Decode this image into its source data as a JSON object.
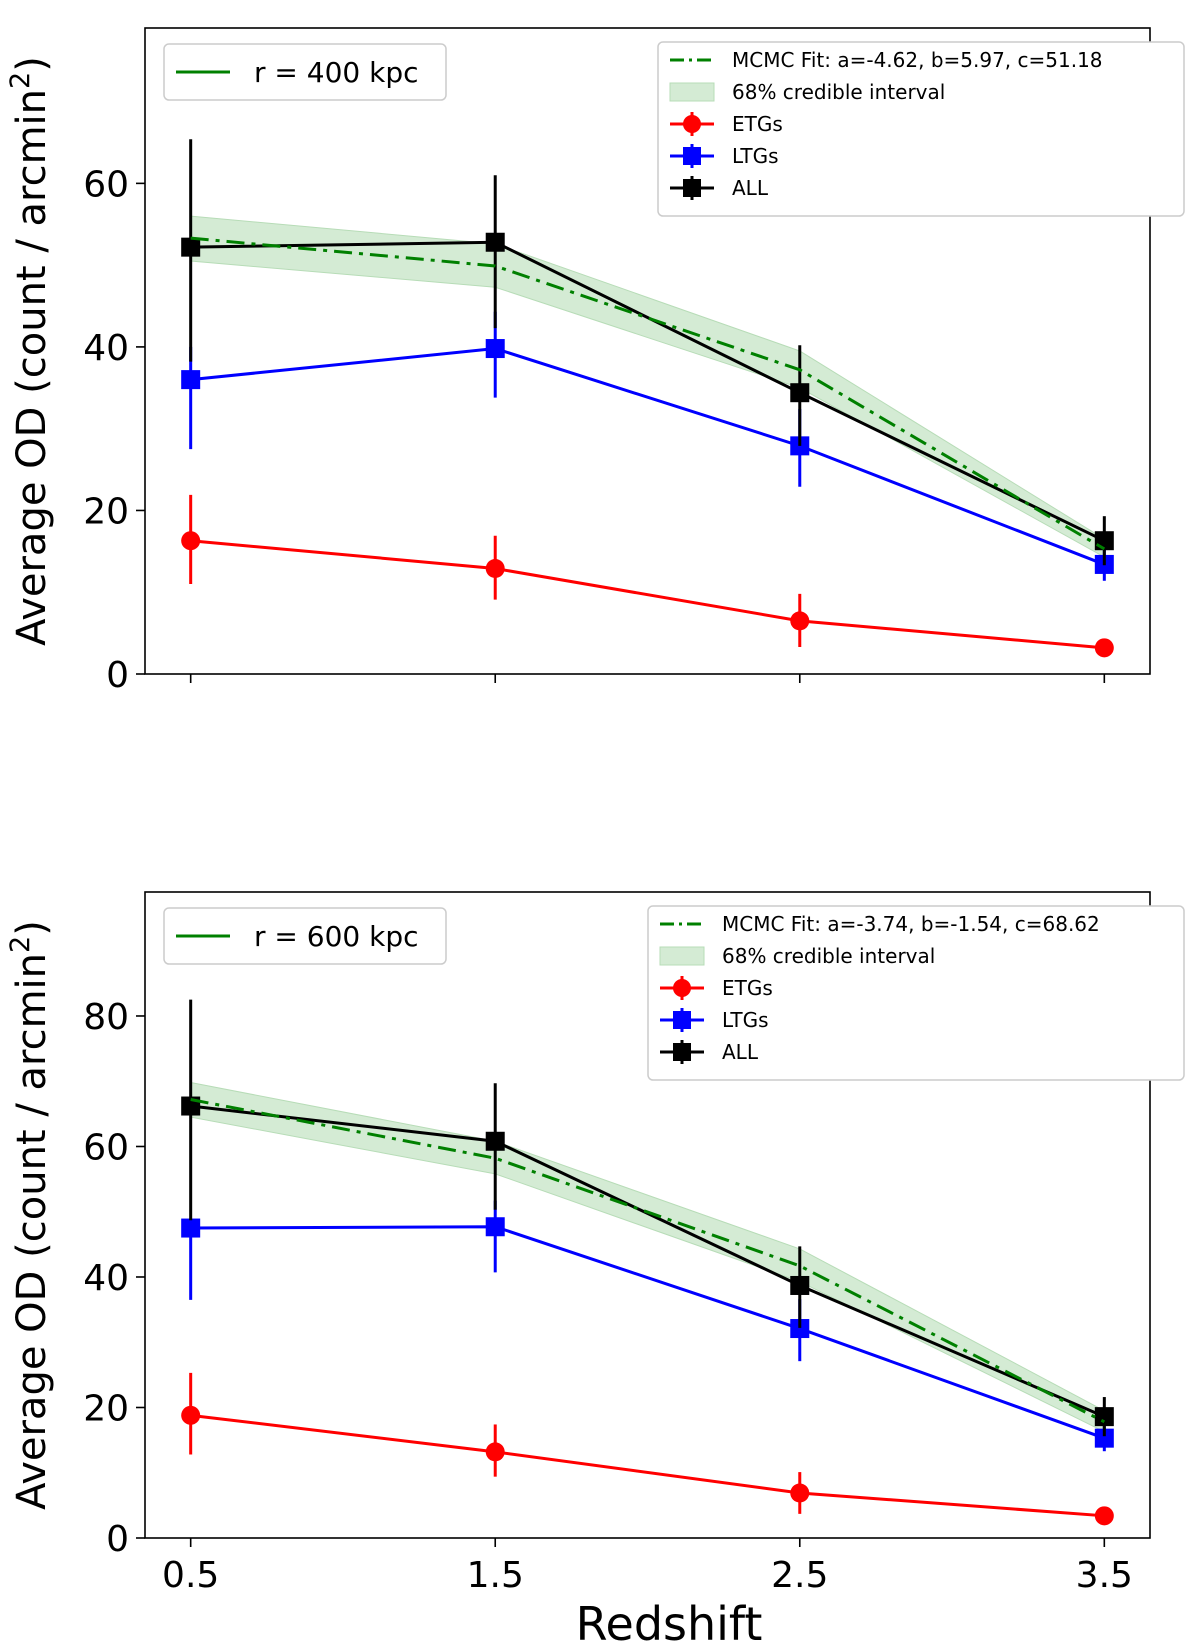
{
  "figure": {
    "xlabel": "Redshift"
  },
  "chart_data": [
    {
      "type": "line",
      "xlabel": "Redshift",
      "ylabel_main": "Average OD (count / arcmin",
      "ylabel_sup": "2",
      "ylabel_close": ")",
      "xlim": [
        0.35,
        3.65
      ],
      "ylim": [
        0,
        79
      ],
      "yticks": [
        0,
        20,
        40,
        60
      ],
      "x": [
        0.5,
        1.5,
        2.5,
        3.5
      ],
      "xtick_labels": [
        "0.5",
        "1.5",
        "2.5",
        "3.5"
      ],
      "show_xtick_labels": false,
      "radius_legend": {
        "label": "r = 400 kpc",
        "color": "#008000"
      },
      "fit": {
        "label": "MCMC Fit: a=-4.62, b=5.97, c=51.18",
        "color": "#008000",
        "values": [
          53.3,
          49.9,
          37.2,
          15.3
        ],
        "band_label": "68% credible interval",
        "band_color": "#d4ebd4",
        "band_lower": [
          50.5,
          47.3,
          35.0,
          14.3
        ],
        "band_upper": [
          56.0,
          52.6,
          39.5,
          16.5
        ]
      },
      "series": [
        {
          "name": "ETGs",
          "color": "#ff0000",
          "marker": "circle",
          "values": [
            16.3,
            12.9,
            6.5,
            3.2
          ],
          "err_low": [
            5.3,
            3.8,
            3.2,
            0.6
          ],
          "err_high": [
            5.6,
            4.0,
            3.3,
            0.6
          ]
        },
        {
          "name": "LTGs",
          "color": "#0000ff",
          "marker": "square",
          "values": [
            36.0,
            39.8,
            27.9,
            13.4
          ],
          "err_low": [
            8.5,
            6.0,
            5.0,
            2.0
          ],
          "err_high": [
            4.0,
            4.5,
            4.5,
            2.0
          ]
        },
        {
          "name": "ALL",
          "color": "#000000",
          "marker": "square",
          "values": [
            52.2,
            52.8,
            34.4,
            16.3
          ],
          "err_low": [
            14.0,
            10.5,
            6.5,
            3.0
          ],
          "err_high": [
            13.2,
            8.2,
            5.8,
            3.0
          ]
        }
      ]
    },
    {
      "type": "line",
      "xlabel": "Redshift",
      "ylabel_main": "Average OD (count / arcmin",
      "ylabel_sup": "2",
      "ylabel_close": ")",
      "xlim": [
        0.35,
        3.65
      ],
      "ylim": [
        0,
        99
      ],
      "yticks": [
        0,
        20,
        40,
        60,
        80
      ],
      "x": [
        0.5,
        1.5,
        2.5,
        3.5
      ],
      "xtick_labels": [
        "0.5",
        "1.5",
        "2.5",
        "3.5"
      ],
      "show_xtick_labels": true,
      "radius_legend": {
        "label": "r = 600 kpc",
        "color": "#008000"
      },
      "fit": {
        "label": "MCMC Fit: a=-3.74, b=-1.54, c=68.62",
        "color": "#008000",
        "values": [
          67.2,
          58.2,
          41.7,
          17.8
        ],
        "band_lower": [
          64.5,
          55.8,
          39.3,
          16.3
        ],
        "band_upper": [
          69.8,
          60.8,
          44.3,
          19.5
        ],
        "band_label": "68% credible interval",
        "band_color": "#d4ebd4"
      },
      "series": [
        {
          "name": "ETGs",
          "color": "#ff0000",
          "marker": "circle",
          "values": [
            18.8,
            13.2,
            6.9,
            3.4
          ],
          "err_low": [
            6.0,
            3.8,
            3.2,
            0.6
          ],
          "err_high": [
            6.5,
            4.2,
            3.2,
            0.6
          ]
        },
        {
          "name": "LTGs",
          "color": "#0000ff",
          "marker": "square",
          "values": [
            47.5,
            47.7,
            32.1,
            15.3
          ],
          "err_low": [
            11.0,
            7.0,
            5.0,
            2.0
          ],
          "err_high": [
            0.0,
            4.0,
            4.5,
            2.0
          ]
        },
        {
          "name": "ALL",
          "color": "#000000",
          "marker": "square",
          "values": [
            66.2,
            60.8,
            38.7,
            18.6
          ],
          "err_low": [
            17.5,
            10.5,
            6.5,
            3.0
          ],
          "err_high": [
            16.3,
            8.9,
            6.0,
            3.0
          ]
        }
      ]
    }
  ]
}
